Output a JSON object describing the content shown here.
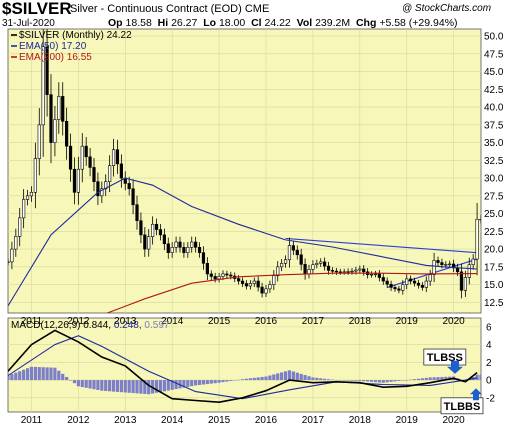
{
  "header": {
    "symbol": "$SILVER",
    "contract": "Silver - Continuous Contract (EOD)",
    "exchange": "CME",
    "credit": "@ StockCharts.com",
    "date": "31-Jul-2020",
    "open_label": "Op",
    "open": "18.58",
    "high_label": "Hi",
    "high": "26.27",
    "low_label": "Lo",
    "low": "18.00",
    "close_label": "Cl",
    "close": "24.22",
    "vol_label": "Vol",
    "vol": "239.2M",
    "chg_label": "Chg",
    "chg": "+5.58 (+29.94%)"
  },
  "chart_data": [
    {
      "type": "candlestick",
      "title": "$SILVER (Monthly) 24.22",
      "legend": [
        {
          "name": "$SILVER (Monthly) 24.22",
          "color": "#000000"
        },
        {
          "name": "EMA(50) 17.20",
          "color": "#1c2a9e"
        },
        {
          "name": "EMA(200) 16.55",
          "color": "#b01818"
        }
      ],
      "ylim": [
        11,
        51
      ],
      "y_ticks": [
        "12.5",
        "15.0",
        "17.5",
        "20.0",
        "22.5",
        "25.0",
        "27.5",
        "30.0",
        "32.5",
        "35.0",
        "37.5",
        "40.0",
        "42.5",
        "45.0",
        "47.5",
        "50.0"
      ],
      "x_ticks": [
        "2011",
        "2012",
        "2013",
        "2014",
        "2015",
        "2016",
        "2017",
        "2018",
        "2019",
        "2020"
      ],
      "monthly_close": [
        {
          "x": "2010-07",
          "y": 18.2
        },
        {
          "x": "2010-09",
          "y": 21.8
        },
        {
          "x": "2010-11",
          "y": 27.0
        },
        {
          "x": "2011-01",
          "y": 28.0
        },
        {
          "x": "2011-03",
          "y": 37.5
        },
        {
          "x": "2011-04",
          "y": 48.5
        },
        {
          "x": "2011-06",
          "y": 35.0
        },
        {
          "x": "2011-08",
          "y": 41.5
        },
        {
          "x": "2011-10",
          "y": 34.5
        },
        {
          "x": "2011-12",
          "y": 28.0
        },
        {
          "x": "2012-02",
          "y": 34.5
        },
        {
          "x": "2012-04",
          "y": 31.5
        },
        {
          "x": "2012-06",
          "y": 27.5
        },
        {
          "x": "2012-08",
          "y": 29.5
        },
        {
          "x": "2012-10",
          "y": 34.0
        },
        {
          "x": "2012-12",
          "y": 30.0
        },
        {
          "x": "2013-02",
          "y": 28.5
        },
        {
          "x": "2013-04",
          "y": 24.0
        },
        {
          "x": "2013-06",
          "y": 20.0
        },
        {
          "x": "2013-08",
          "y": 23.5
        },
        {
          "x": "2013-10",
          "y": 22.0
        },
        {
          "x": "2013-12",
          "y": 19.5
        },
        {
          "x": "2014-02",
          "y": 21.0
        },
        {
          "x": "2014-04",
          "y": 19.5
        },
        {
          "x": "2014-06",
          "y": 21.0
        },
        {
          "x": "2014-08",
          "y": 19.5
        },
        {
          "x": "2014-10",
          "y": 16.5
        },
        {
          "x": "2014-12",
          "y": 15.8
        },
        {
          "x": "2015-02",
          "y": 16.5
        },
        {
          "x": "2015-04",
          "y": 16.2
        },
        {
          "x": "2015-06",
          "y": 15.5
        },
        {
          "x": "2015-08",
          "y": 14.8
        },
        {
          "x": "2015-10",
          "y": 15.5
        },
        {
          "x": "2015-12",
          "y": 13.8
        },
        {
          "x": "2016-02",
          "y": 15.0
        },
        {
          "x": "2016-04",
          "y": 17.5
        },
        {
          "x": "2016-06",
          "y": 18.5
        },
        {
          "x": "2016-07",
          "y": 20.5
        },
        {
          "x": "2016-09",
          "y": 19.2
        },
        {
          "x": "2016-11",
          "y": 16.5
        },
        {
          "x": "2017-01",
          "y": 17.8
        },
        {
          "x": "2017-03",
          "y": 18.2
        },
        {
          "x": "2017-05",
          "y": 17.0
        },
        {
          "x": "2017-07",
          "y": 16.8
        },
        {
          "x": "2017-09",
          "y": 16.8
        },
        {
          "x": "2017-11",
          "y": 16.9
        },
        {
          "x": "2018-01",
          "y": 17.2
        },
        {
          "x": "2018-03",
          "y": 16.4
        },
        {
          "x": "2018-05",
          "y": 16.5
        },
        {
          "x": "2018-07",
          "y": 15.5
        },
        {
          "x": "2018-09",
          "y": 14.6
        },
        {
          "x": "2018-11",
          "y": 14.2
        },
        {
          "x": "2019-01",
          "y": 15.8
        },
        {
          "x": "2019-03",
          "y": 15.2
        },
        {
          "x": "2019-05",
          "y": 14.6
        },
        {
          "x": "2019-07",
          "y": 16.4
        },
        {
          "x": "2019-08",
          "y": 18.4
        },
        {
          "x": "2019-10",
          "y": 17.8
        },
        {
          "x": "2019-12",
          "y": 17.9
        },
        {
          "x": "2020-02",
          "y": 16.8
        },
        {
          "x": "2020-03",
          "y": 14.2
        },
        {
          "x": "2020-05",
          "y": 17.8
        },
        {
          "x": "2020-06",
          "y": 18.6
        },
        {
          "x": "2020-07",
          "y": 24.2
        }
      ],
      "ema50": [
        {
          "x": "2010-07",
          "y": 12.0
        },
        {
          "x": "2011-06",
          "y": 22.0
        },
        {
          "x": "2012-06",
          "y": 28.0
        },
        {
          "x": "2013-01",
          "y": 30.0
        },
        {
          "x": "2013-08",
          "y": 29.0
        },
        {
          "x": "2014-06",
          "y": 26.0
        },
        {
          "x": "2015-06",
          "y": 23.5
        },
        {
          "x": "2016-06",
          "y": 21.3
        },
        {
          "x": "2017-06",
          "y": 20.3
        },
        {
          "x": "2018-06",
          "y": 19.0
        },
        {
          "x": "2019-06",
          "y": 17.7
        },
        {
          "x": "2020-01",
          "y": 17.4
        },
        {
          "x": "2020-07",
          "y": 17.2
        }
      ],
      "ema200": [
        {
          "x": "2010-07",
          "y": 5.0
        },
        {
          "x": "2011-06",
          "y": 7.5
        },
        {
          "x": "2012-06",
          "y": 10.5
        },
        {
          "x": "2013-06",
          "y": 13.0
        },
        {
          "x": "2014-06",
          "y": 15.2
        },
        {
          "x": "2015-06",
          "y": 16.1
        },
        {
          "x": "2016-06",
          "y": 16.4
        },
        {
          "x": "2017-06",
          "y": 16.6
        },
        {
          "x": "2018-06",
          "y": 16.6
        },
        {
          "x": "2019-06",
          "y": 16.5
        },
        {
          "x": "2020-07",
          "y": 16.55
        }
      ],
      "trendlines": [
        {
          "x1": "2016-06",
          "y1": 21.5,
          "x2": "2020-07",
          "y2": 19.5
        },
        {
          "x1": "2018-08",
          "y1": 14.6,
          "x2": "2020-07",
          "y2": 18.6
        }
      ]
    },
    {
      "type": "line",
      "title": "MACD(12,26,9) 0.844, 0.248, 0.597",
      "legend": [
        {
          "name": "MACD(12,26,9)",
          "color": "#000000"
        },
        {
          "name": "0.844",
          "color": "#000000"
        },
        {
          "name": "0.248",
          "color": "#1c2a9e"
        },
        {
          "name": "0.597",
          "color": "#7b7ec9"
        }
      ],
      "ylim": [
        -3.6,
        7
      ],
      "y_ticks": [
        "-2",
        "0",
        "2",
        "4",
        "6"
      ],
      "macd": [
        {
          "x": "2010-07",
          "y": 1.0
        },
        {
          "x": "2011-01",
          "y": 4.0
        },
        {
          "x": "2011-07",
          "y": 5.6
        },
        {
          "x": "2012-01",
          "y": 4.3
        },
        {
          "x": "2012-07",
          "y": 2.6
        },
        {
          "x": "2013-01",
          "y": 1.6
        },
        {
          "x": "2013-07",
          "y": -0.6
        },
        {
          "x": "2014-01",
          "y": -2.1
        },
        {
          "x": "2014-07",
          "y": -2.3
        },
        {
          "x": "2015-01",
          "y": -2.5
        },
        {
          "x": "2015-07",
          "y": -2.0
        },
        {
          "x": "2016-01",
          "y": -1.2
        },
        {
          "x": "2016-07",
          "y": 0.0
        },
        {
          "x": "2017-01",
          "y": -0.3
        },
        {
          "x": "2017-07",
          "y": -0.2
        },
        {
          "x": "2018-01",
          "y": -0.3
        },
        {
          "x": "2018-07",
          "y": -0.8
        },
        {
          "x": "2019-01",
          "y": -0.7
        },
        {
          "x": "2019-07",
          "y": -0.3
        },
        {
          "x": "2020-01",
          "y": 0.2
        },
        {
          "x": "2020-04",
          "y": -0.2
        },
        {
          "x": "2020-07",
          "y": 0.84
        }
      ],
      "signal": [
        {
          "x": "2010-07",
          "y": 0.5
        },
        {
          "x": "2011-07",
          "y": 4.0
        },
        {
          "x": "2012-01",
          "y": 5.0
        },
        {
          "x": "2012-07",
          "y": 3.8
        },
        {
          "x": "2013-07",
          "y": 1.0
        },
        {
          "x": "2014-07",
          "y": -1.3
        },
        {
          "x": "2015-07",
          "y": -2.1
        },
        {
          "x": "2016-07",
          "y": -1.1
        },
        {
          "x": "2017-07",
          "y": -0.2
        },
        {
          "x": "2018-07",
          "y": -0.5
        },
        {
          "x": "2019-07",
          "y": -0.6
        },
        {
          "x": "2020-04",
          "y": 0.0
        },
        {
          "x": "2020-07",
          "y": 0.25
        }
      ],
      "histogram": [
        {
          "x": "2010-07",
          "y": 0.5
        },
        {
          "x": "2011-01",
          "y": 1.5
        },
        {
          "x": "2011-07",
          "y": 1.4
        },
        {
          "x": "2012-01",
          "y": -0.7
        },
        {
          "x": "2012-07",
          "y": -1.2
        },
        {
          "x": "2013-01",
          "y": -1.4
        },
        {
          "x": "2013-07",
          "y": -1.6
        },
        {
          "x": "2014-01",
          "y": -1.1
        },
        {
          "x": "2014-07",
          "y": -0.6
        },
        {
          "x": "2015-01",
          "y": -0.3
        },
        {
          "x": "2015-07",
          "y": 0.1
        },
        {
          "x": "2016-01",
          "y": 0.4
        },
        {
          "x": "2016-07",
          "y": 1.1
        },
        {
          "x": "2017-01",
          "y": 0.3
        },
        {
          "x": "2017-07",
          "y": 0.0
        },
        {
          "x": "2018-01",
          "y": -0.1
        },
        {
          "x": "2018-07",
          "y": -0.3
        },
        {
          "x": "2019-01",
          "y": 0.0
        },
        {
          "x": "2019-07",
          "y": 0.3
        },
        {
          "x": "2020-01",
          "y": 0.4
        },
        {
          "x": "2020-04",
          "y": -0.2
        },
        {
          "x": "2020-07",
          "y": 0.6
        }
      ],
      "annotations": [
        {
          "text": "TLBSS",
          "x": "2019-11",
          "y": 2.6
        },
        {
          "text": "TLBBS",
          "x": "2020-04",
          "y": -2.9
        }
      ]
    }
  ],
  "colors": {
    "panel_bg": "#f7f7b9",
    "ema50": "#1c2a9e",
    "ema200": "#b01818",
    "trendline": "#2b3fd6",
    "histogram": "#7b7ec9",
    "annotation_arrow": "#1d5fcf"
  }
}
